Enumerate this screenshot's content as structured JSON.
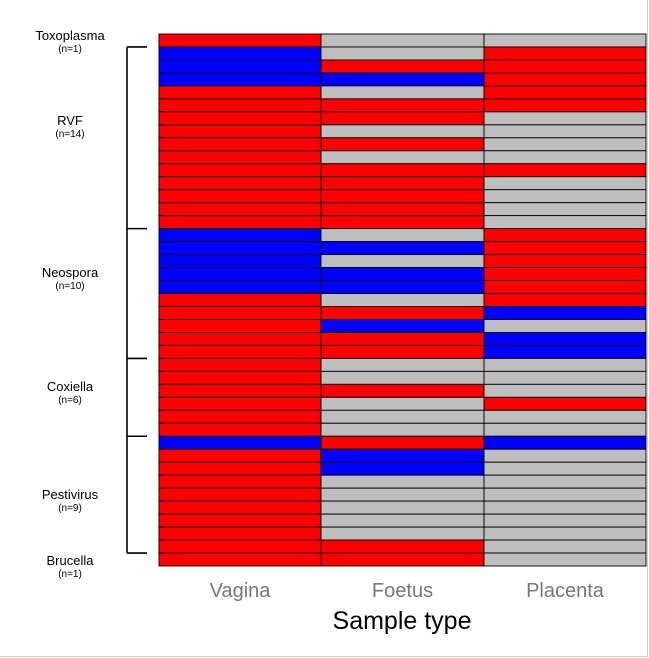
{
  "chart_data": {
    "type": "heatmap",
    "xlabel": "Sample type",
    "columns": [
      "Vagina",
      "Foetus",
      "Placenta"
    ],
    "groups": [
      {
        "name": "Toxoplasma",
        "count": "(n=1)",
        "rows": 1
      },
      {
        "name": "RVF",
        "count": "(n=14)",
        "rows": 14
      },
      {
        "name": "Neospora",
        "count": "(n=10)",
        "rows": 10
      },
      {
        "name": "Coxiella",
        "count": "(n=6)",
        "rows": 6
      },
      {
        "name": "Pestivirus",
        "count": "(n=9)",
        "rows": 9
      },
      {
        "name": "Brucella",
        "count": "(n=1)",
        "rows": 1
      }
    ],
    "colors": {
      "R": "#ff0000",
      "B": "#0000ff",
      "G": "#bebebe"
    },
    "cells": [
      [
        "R",
        "G",
        "G"
      ],
      [
        "B",
        "G",
        "R"
      ],
      [
        "B",
        "R",
        "R"
      ],
      [
        "B",
        "B",
        "R"
      ],
      [
        "R",
        "G",
        "R"
      ],
      [
        "R",
        "R",
        "R"
      ],
      [
        "R",
        "R",
        "G"
      ],
      [
        "R",
        "G",
        "G"
      ],
      [
        "R",
        "R",
        "G"
      ],
      [
        "R",
        "G",
        "G"
      ],
      [
        "R",
        "R",
        "R"
      ],
      [
        "R",
        "R",
        "G"
      ],
      [
        "R",
        "R",
        "G"
      ],
      [
        "R",
        "R",
        "G"
      ],
      [
        "R",
        "R",
        "G"
      ],
      [
        "B",
        "G",
        "R"
      ],
      [
        "B",
        "B",
        "R"
      ],
      [
        "B",
        "G",
        "R"
      ],
      [
        "B",
        "B",
        "R"
      ],
      [
        "B",
        "B",
        "R"
      ],
      [
        "R",
        "G",
        "R"
      ],
      [
        "R",
        "R",
        "B"
      ],
      [
        "R",
        "B",
        "G"
      ],
      [
        "R",
        "R",
        "B"
      ],
      [
        "R",
        "R",
        "B"
      ],
      [
        "R",
        "G",
        "G"
      ],
      [
        "R",
        "G",
        "G"
      ],
      [
        "R",
        "R",
        "G"
      ],
      [
        "R",
        "G",
        "R"
      ],
      [
        "R",
        "G",
        "G"
      ],
      [
        "R",
        "G",
        "G"
      ],
      [
        "B",
        "R",
        "B"
      ],
      [
        "R",
        "B",
        "G"
      ],
      [
        "R",
        "B",
        "G"
      ],
      [
        "R",
        "G",
        "G"
      ],
      [
        "R",
        "G",
        "G"
      ],
      [
        "R",
        "G",
        "G"
      ],
      [
        "R",
        "G",
        "G"
      ],
      [
        "R",
        "G",
        "G"
      ],
      [
        "R",
        "R",
        "G"
      ],
      [
        "R",
        "R",
        "G"
      ]
    ]
  }
}
